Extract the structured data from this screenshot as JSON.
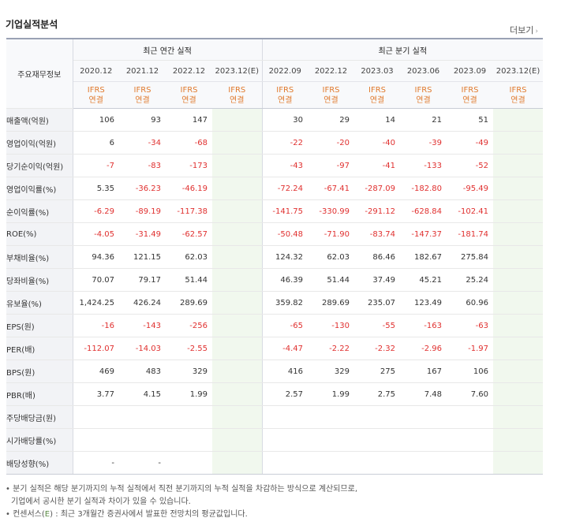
{
  "section_title": "기업실적분석",
  "more_label": "더보기",
  "more_arrow": "›",
  "left_header": "주요재무정보",
  "group_headers": {
    "annual": "최근 연간 실적",
    "quarterly": "최근 분기 실적"
  },
  "annual_periods": [
    "2020.12",
    "2021.12",
    "2022.12",
    "2023.12(E)"
  ],
  "quarter_periods": [
    "2022.09",
    "2022.12",
    "2023.03",
    "2023.06",
    "2023.09",
    "2023.12(E)"
  ],
  "ifrs_label": "IFRS",
  "consol_label": "연결",
  "rows": [
    {
      "label": "매출액(억원)",
      "annual": [
        "106",
        "93",
        "147",
        ""
      ],
      "quarter": [
        "30",
        "29",
        "14",
        "21",
        "51",
        ""
      ]
    },
    {
      "label": "영업이익(억원)",
      "annual": [
        "6",
        "-34",
        "-68",
        ""
      ],
      "quarter": [
        "-22",
        "-20",
        "-40",
        "-39",
        "-49",
        ""
      ]
    },
    {
      "label": "당기순이익(억원)",
      "annual": [
        "-7",
        "-83",
        "-173",
        ""
      ],
      "quarter": [
        "-43",
        "-97",
        "-41",
        "-133",
        "-52",
        ""
      ]
    },
    {
      "label": "영업이익률(%)",
      "annual": [
        "5.35",
        "-36.23",
        "-46.19",
        ""
      ],
      "quarter": [
        "-72.24",
        "-67.41",
        "-287.09",
        "-182.80",
        "-95.49",
        ""
      ]
    },
    {
      "label": "순이익률(%)",
      "annual": [
        "-6.29",
        "-89.19",
        "-117.38",
        ""
      ],
      "quarter": [
        "-141.75",
        "-330.99",
        "-291.12",
        "-628.84",
        "-102.41",
        ""
      ]
    },
    {
      "label": "ROE(%)",
      "annual": [
        "-4.05",
        "-31.49",
        "-62.57",
        ""
      ],
      "quarter": [
        "-50.48",
        "-71.90",
        "-83.74",
        "-147.37",
        "-181.74",
        ""
      ]
    },
    {
      "label": "부채비율(%)",
      "annual": [
        "94.36",
        "121.15",
        "62.03",
        ""
      ],
      "quarter": [
        "124.32",
        "62.03",
        "86.46",
        "182.67",
        "275.84",
        ""
      ]
    },
    {
      "label": "당좌비율(%)",
      "annual": [
        "70.07",
        "79.17",
        "51.44",
        ""
      ],
      "quarter": [
        "46.39",
        "51.44",
        "37.49",
        "45.21",
        "25.24",
        ""
      ]
    },
    {
      "label": "유보율(%)",
      "annual": [
        "1,424.25",
        "426.24",
        "289.69",
        ""
      ],
      "quarter": [
        "359.82",
        "289.69",
        "235.07",
        "123.49",
        "60.96",
        ""
      ]
    },
    {
      "label": "EPS(원)",
      "annual": [
        "-16",
        "-143",
        "-256",
        ""
      ],
      "quarter": [
        "-65",
        "-130",
        "-55",
        "-163",
        "-63",
        ""
      ]
    },
    {
      "label": "PER(배)",
      "annual": [
        "-112.07",
        "-14.03",
        "-2.55",
        ""
      ],
      "quarter": [
        "-4.47",
        "-2.22",
        "-2.32",
        "-2.96",
        "-1.97",
        ""
      ]
    },
    {
      "label": "BPS(원)",
      "annual": [
        "469",
        "483",
        "329",
        ""
      ],
      "quarter": [
        "416",
        "329",
        "275",
        "167",
        "106",
        ""
      ]
    },
    {
      "label": "PBR(배)",
      "annual": [
        "3.77",
        "4.15",
        "1.99",
        ""
      ],
      "quarter": [
        "2.57",
        "1.99",
        "2.75",
        "7.48",
        "7.60",
        ""
      ]
    },
    {
      "label": "주당배당금(원)",
      "annual": [
        "",
        "",
        "",
        ""
      ],
      "quarter": [
        "",
        "",
        "",
        "",
        "",
        ""
      ]
    },
    {
      "label": "시가배당률(%)",
      "annual": [
        "",
        "",
        "",
        ""
      ],
      "quarter": [
        "",
        "",
        "",
        "",
        "",
        ""
      ]
    },
    {
      "label": "배당성향(%)",
      "annual": [
        "-",
        "-",
        "",
        ""
      ],
      "quarter": [
        "",
        "",
        "",
        "",
        "",
        ""
      ]
    }
  ],
  "section_breaks": [
    3,
    6,
    9
  ],
  "notes": {
    "line1": "• 분기 실적은 해당 분기까지의 누적 실적에서 직전 분기까지의 누적 실적을 차감하는 방식으로 계산되므로,",
    "line2": "기업에서 공시한 분기 실적과 차이가 있을 수 있습니다.",
    "line3_prefix": "• 컨센서스(",
    "line3_e": "E",
    "line3_suffix": ") : 최근 3개월간 증권사에서 발표한 전망치의 평균값입니다."
  },
  "colors": {
    "negative": "#e0302f",
    "ifrs": "#e07a2e",
    "estimate_bg": "#f1f8ee",
    "estimate_text": "#5a8a44"
  }
}
